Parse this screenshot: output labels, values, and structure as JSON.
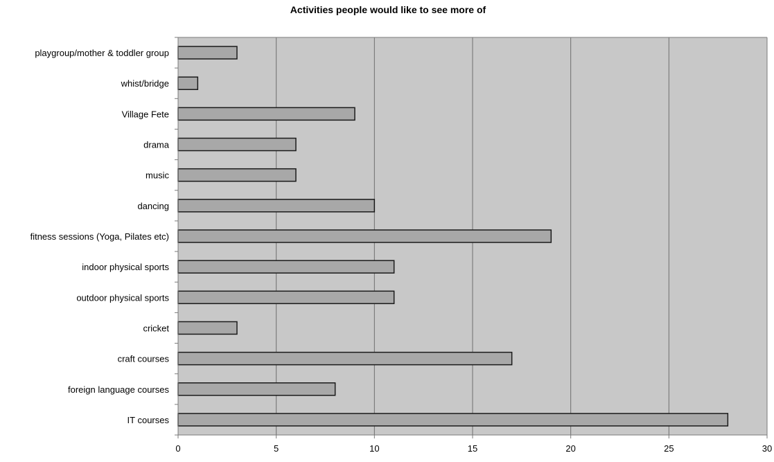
{
  "chart_data": {
    "type": "bar",
    "orientation": "horizontal",
    "title": "Activities people would like to see more of",
    "xlabel": "",
    "ylabel": "",
    "categories": [
      "playgroup/mother & toddler group",
      "whist/bridge",
      "Village Fete",
      "drama",
      "music",
      "dancing",
      "fitness sessions (Yoga, Pilates etc)",
      "indoor physical sports",
      "outdoor physical sports",
      "cricket",
      "craft courses",
      "foreign language courses",
      "IT courses"
    ],
    "values": [
      3,
      1,
      9,
      6,
      6,
      10,
      19,
      11,
      11,
      3,
      17,
      8,
      28
    ],
    "xlim": [
      0,
      30
    ],
    "xticks": [
      0,
      5,
      10,
      15,
      20,
      25,
      30
    ],
    "xtick_labels": [
      "0",
      "5",
      "10",
      "15",
      "20",
      "25",
      "30"
    ],
    "grid": "vertical",
    "legend": "none",
    "colors": {
      "bar_fill": "#a8a8a8",
      "bar_stroke": "#1a1a1a",
      "plot_bg": "#c8c8c8",
      "grid": "#6e6e6e",
      "axis": "#7a7a7a",
      "text": "#000000"
    }
  }
}
